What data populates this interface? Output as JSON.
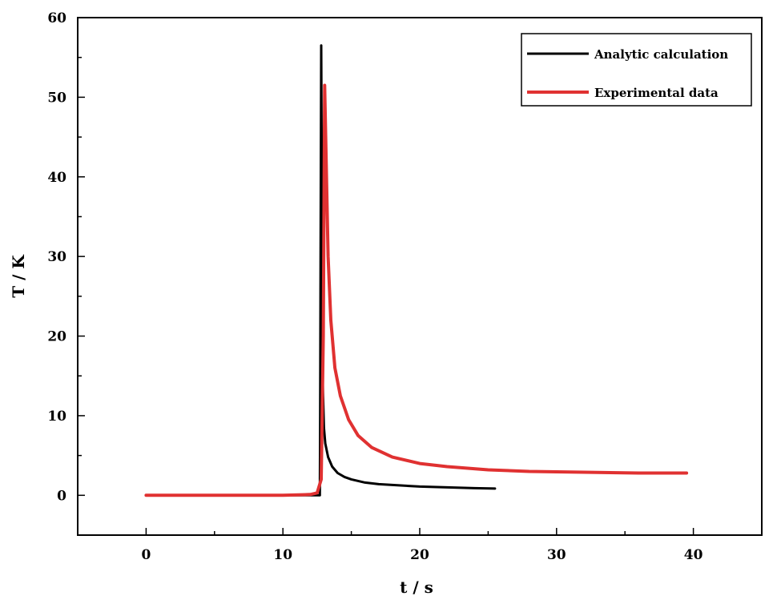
{
  "chart_data": {
    "type": "line",
    "xlabel": "t / s",
    "ylabel": "T / K",
    "xlim": [
      -5,
      45
    ],
    "ylim": [
      -5,
      60
    ],
    "xticks": [
      0,
      10,
      20,
      30,
      40
    ],
    "xtick_labels": [
      "0",
      "10",
      "20",
      "30",
      "40"
    ],
    "yticks": [
      0,
      10,
      20,
      30,
      40,
      50,
      60
    ],
    "ytick_labels": [
      "0",
      "10",
      "20",
      "30",
      "40",
      "50",
      "60"
    ],
    "grid": false,
    "legend_position": "top-right",
    "series": [
      {
        "name": "Analytic calculation",
        "color": "#000000",
        "x": [
          0,
          12.7,
          12.72,
          12.75,
          12.8,
          12.85,
          12.9,
          13.0,
          13.1,
          13.3,
          13.6,
          14,
          14.5,
          15,
          16,
          17,
          18,
          20,
          22,
          24,
          25.5
        ],
        "y": [
          0,
          0,
          10,
          30,
          56.5,
          35,
          15,
          8.5,
          6.5,
          4.8,
          3.6,
          2.8,
          2.3,
          2.0,
          1.6,
          1.4,
          1.3,
          1.1,
          1.0,
          0.9,
          0.85
        ]
      },
      {
        "name": "Experimental data",
        "color": "#e03131",
        "x": [
          0,
          10,
          12,
          12.5,
          12.8,
          12.95,
          13.05,
          13.15,
          13.3,
          13.5,
          13.8,
          14.2,
          14.8,
          15.5,
          16.5,
          18,
          20,
          22,
          25,
          28,
          32,
          36,
          39.5
        ],
        "y": [
          0,
          0,
          0.1,
          0.3,
          2,
          20,
          51.5,
          43,
          30,
          22,
          16,
          12.5,
          9.5,
          7.5,
          6,
          4.8,
          4,
          3.6,
          3.2,
          3.0,
          2.9,
          2.8,
          2.8
        ]
      }
    ]
  }
}
